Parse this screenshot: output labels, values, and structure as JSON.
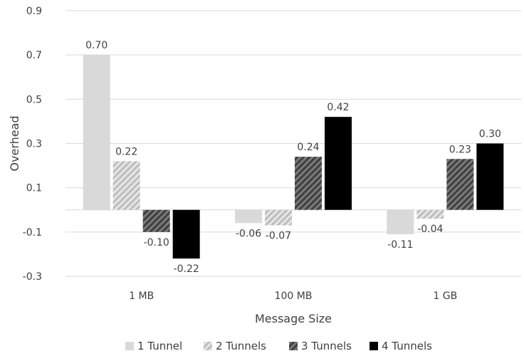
{
  "chart_data": {
    "type": "bar",
    "xlabel": "Message Size",
    "ylabel": "Overhead",
    "categories": [
      "1 MB",
      "100 MB",
      "1 GB"
    ],
    "ylim": [
      -0.3,
      0.9
    ],
    "yticks": [
      0.9,
      0.7,
      0.5,
      0.3,
      0.1,
      -0.1,
      -0.3
    ],
    "ytick_labels": [
      "0.9",
      "0.7",
      "0.5",
      "0.3",
      "0.1",
      "-0.1",
      "-0.3"
    ],
    "grid": "horizontal",
    "legend_position": "bottom",
    "series": [
      {
        "name": "1 Tunnel",
        "values": [
          0.7,
          -0.06,
          -0.11
        ],
        "labels": [
          "0.70",
          "-0.06",
          "-0.11"
        ],
        "color": "#d9d9d9",
        "pattern": "solid"
      },
      {
        "name": "2 Tunnels",
        "values": [
          0.22,
          -0.07,
          -0.04
        ],
        "labels": [
          "0.22",
          "-0.07",
          "-0.04"
        ],
        "color": "#bfbfbf",
        "pattern": "light-diagonal-hatch"
      },
      {
        "name": "3 Tunnels",
        "values": [
          -0.1,
          0.24,
          0.23
        ],
        "labels": [
          "-0.10",
          "0.24",
          "0.23"
        ],
        "color": "#595959",
        "pattern": "dark-diagonal-hatch"
      },
      {
        "name": "4 Tunnels",
        "values": [
          -0.22,
          0.42,
          0.3
        ],
        "labels": [
          "-0.22",
          "0.42",
          "0.30"
        ],
        "color": "#000000",
        "pattern": "solid"
      }
    ]
  }
}
